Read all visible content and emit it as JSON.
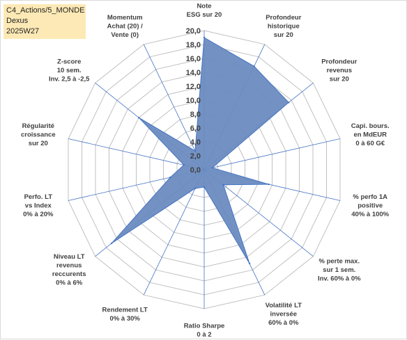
{
  "header": {
    "line1": "C4_Actions/5_MONDE",
    "line2": "Dexus",
    "line3": "2025W27"
  },
  "colors": {
    "fill": "#6b8cc0",
    "stroke": "#4472c4",
    "grid": "#c0c0c0",
    "spoke": "#4472c4",
    "header_bg": "#fde9b5"
  },
  "chart_data": {
    "type": "radar",
    "rlim": [
      0,
      20
    ],
    "rticks": [
      "0,0",
      "2,0",
      "4,0",
      "6,0",
      "8,0",
      "10,0",
      "12,0",
      "14,0",
      "16,0",
      "18,0",
      "20,0"
    ],
    "axes": [
      {
        "label": [
          "Note",
          "ESG sur 20"
        ],
        "value": 19.0
      },
      {
        "label": [
          "Profondeur",
          "historique",
          "sur 20"
        ],
        "value": 16.5
      },
      {
        "label": [
          "Profondeur",
          "revenus",
          "sur 20"
        ],
        "value": 15.5
      },
      {
        "label": [
          "Capi. bours.",
          "en MdEUR",
          "0 à 60 G€"
        ],
        "value": 1.2
      },
      {
        "label": [
          "% perfo 1A",
          "positive",
          "40% à 100%"
        ],
        "value": 9.5
      },
      {
        "label": [
          "% perte max.",
          "sur 1 sem.",
          "Inv. 60% à 0%"
        ],
        "value": 3.5
      },
      {
        "label": [
          "Volatilité LT",
          "inversée",
          "60% à 0%"
        ],
        "value": 15.0
      },
      {
        "label": [
          "Ratio Sharpe",
          "0 à 2"
        ],
        "value": 2.5
      },
      {
        "label": [
          "Rendement LT",
          "0% à 30%"
        ],
        "value": 3.0
      },
      {
        "label": [
          "Niveau LT",
          "revenus",
          "reccurents",
          "0% à 6%"
        ],
        "value": 17.0
      },
      {
        "label": [
          "Perfo. LT",
          "vs Index",
          "0% à 20%"
        ],
        "value": 5.0
      },
      {
        "label": [
          "Régularité",
          "croissance",
          "sur 20"
        ],
        "value": 3.0
      },
      {
        "label": [
          "Z-score",
          "10 sem.",
          "Inv. 2,5 à -2,5"
        ],
        "value": 12.0
      },
      {
        "label": [
          "Momentum",
          "Achat (20) /",
          "Vente (0)"
        ],
        "value": 3.0
      }
    ]
  }
}
